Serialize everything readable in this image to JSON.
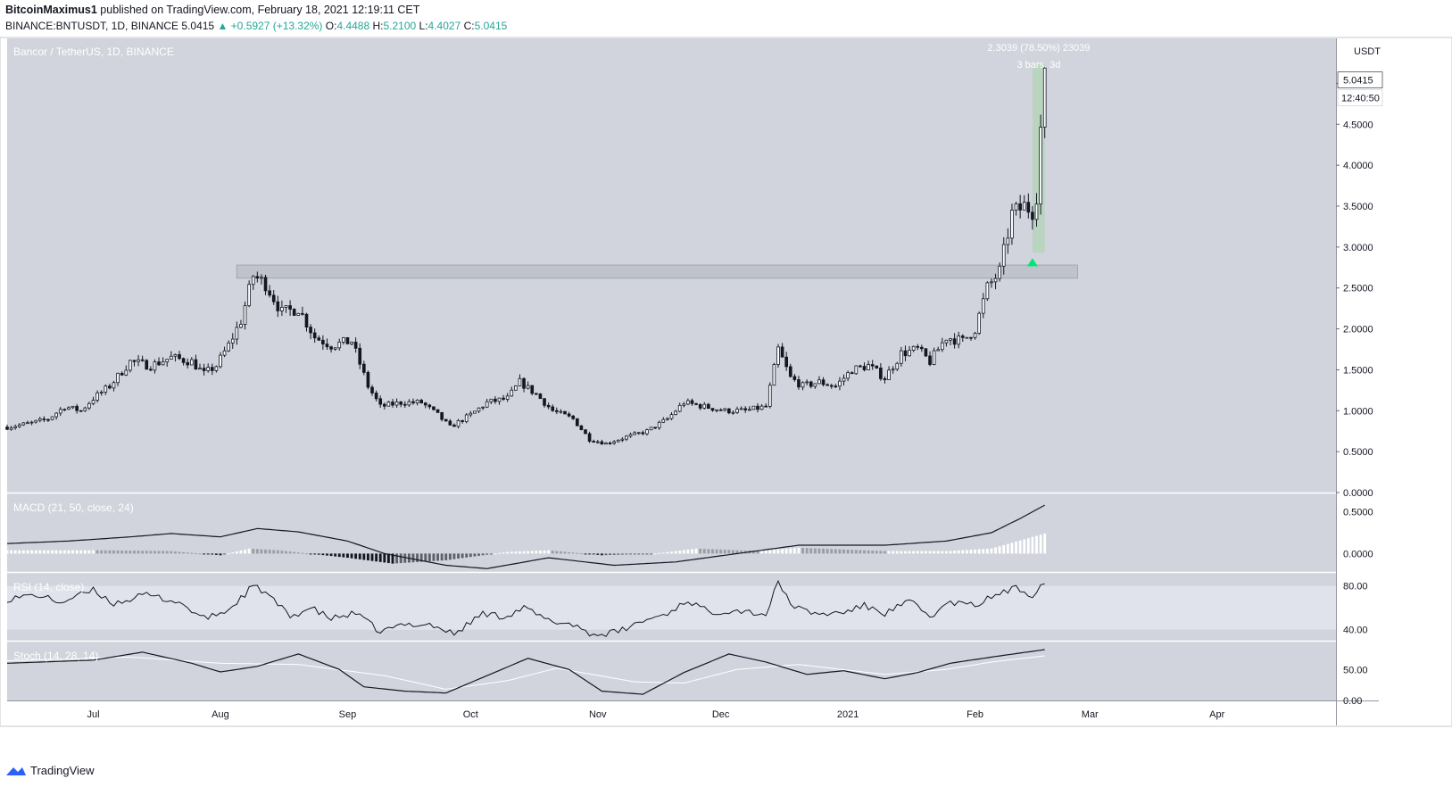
{
  "header": {
    "author": "BitcoinMaximus1",
    "published": "published on TradingView.com, February 18, 2021 12:19:11 CET",
    "symbol": "BINANCE:BNTUSDT, 1D, BINANCE",
    "last": "5.0415",
    "change": "+0.5927 (+13.32%)",
    "o_label": "O:",
    "o": "4.4488",
    "h_label": "H:",
    "h": "5.2100",
    "l_label": "L:",
    "l": "4.4027",
    "c_label": "C:",
    "c": "5.0415"
  },
  "colors": {
    "pane_bg": "#d1d4dc",
    "candle": "#131722",
    "band": "#e0e3eb",
    "zone": "#bfc3cb",
    "measure": "#a5d6a7",
    "arrow": "#00e676"
  },
  "chart_data": [
    {
      "type": "candlestick",
      "title": "Bancor / TetherUS, 1D, BINANCE",
      "unit": "USDT",
      "x_dates": [
        "2020-06-10",
        "2021-04-30"
      ],
      "x_ticks": [
        {
          "date": "2020-07-01",
          "label": "Jul"
        },
        {
          "date": "2020-08-01",
          "label": "Aug"
        },
        {
          "date": "2020-09-01",
          "label": "Sep"
        },
        {
          "date": "2020-10-01",
          "label": "Oct"
        },
        {
          "date": "2020-11-01",
          "label": "Nov"
        },
        {
          "date": "2020-12-01",
          "label": "Dec"
        },
        {
          "date": "2021-01-01",
          "label": "2021"
        },
        {
          "date": "2021-02-01",
          "label": "Feb"
        },
        {
          "date": "2021-03-01",
          "label": "Mar"
        },
        {
          "date": "2021-04-01",
          "label": "Apr"
        }
      ],
      "ylim": [
        0,
        5.55
      ],
      "y_ticks": [
        "5",
        "4.5000",
        "4.0000",
        "3.5000",
        "3.0000",
        "2.5000",
        "2.0000",
        "1.5000",
        "1.0000",
        "0.5000",
        "0.0000"
      ],
      "y_tick_values": [
        5,
        4.5,
        4,
        3.5,
        3,
        2.5,
        2,
        1.5,
        1,
        0.5,
        0
      ],
      "last_price_label": "5.0415",
      "countdown_label": "12:40:50",
      "close_path": [
        [
          "2020-06-10",
          0.8
        ],
        [
          "2020-06-16",
          0.85
        ],
        [
          "2020-06-20",
          0.9
        ],
        [
          "2020-06-24",
          1.05
        ],
        [
          "2020-06-28",
          1.0
        ],
        [
          "2020-07-01",
          1.15
        ],
        [
          "2020-07-05",
          1.3
        ],
        [
          "2020-07-10",
          1.6
        ],
        [
          "2020-07-15",
          1.55
        ],
        [
          "2020-07-20",
          1.65
        ],
        [
          "2020-07-25",
          1.6
        ],
        [
          "2020-07-28",
          1.45
        ],
        [
          "2020-07-31",
          1.55
        ],
        [
          "2020-08-03",
          1.8
        ],
        [
          "2020-08-06",
          2.1
        ],
        [
          "2020-08-09",
          2.65
        ],
        [
          "2020-08-12",
          2.55
        ],
        [
          "2020-08-16",
          2.2
        ],
        [
          "2020-08-20",
          2.25
        ],
        [
          "2020-08-24",
          1.9
        ],
        [
          "2020-08-28",
          1.8
        ],
        [
          "2020-09-02",
          1.85
        ],
        [
          "2020-09-06",
          1.3
        ],
        [
          "2020-09-09",
          1.05
        ],
        [
          "2020-09-14",
          1.1
        ],
        [
          "2020-09-19",
          1.1
        ],
        [
          "2020-09-23",
          0.95
        ],
        [
          "2020-09-26",
          0.8
        ],
        [
          "2020-10-01",
          0.95
        ],
        [
          "2020-10-05",
          1.1
        ],
        [
          "2020-10-10",
          1.15
        ],
        [
          "2020-10-13",
          1.35
        ],
        [
          "2020-10-17",
          1.2
        ],
        [
          "2020-10-21",
          1.0
        ],
        [
          "2020-10-26",
          0.9
        ],
        [
          "2020-10-30",
          0.65
        ],
        [
          "2020-11-03",
          0.6
        ],
        [
          "2020-11-08",
          0.68
        ],
        [
          "2020-11-13",
          0.75
        ],
        [
          "2020-11-18",
          0.9
        ],
        [
          "2020-11-22",
          1.1
        ],
        [
          "2020-11-27",
          1.05
        ],
        [
          "2020-12-02",
          1.0
        ],
        [
          "2020-12-07",
          1.0
        ],
        [
          "2020-12-12",
          1.05
        ],
        [
          "2020-12-15",
          1.75
        ],
        [
          "2020-12-18",
          1.4
        ],
        [
          "2020-12-21",
          1.3
        ],
        [
          "2020-12-25",
          1.35
        ],
        [
          "2020-12-29",
          1.3
        ],
        [
          "2021-01-02",
          1.5
        ],
        [
          "2021-01-06",
          1.55
        ],
        [
          "2021-01-10",
          1.4
        ],
        [
          "2021-01-14",
          1.7
        ],
        [
          "2021-01-18",
          1.75
        ],
        [
          "2021-01-21",
          1.6
        ],
        [
          "2021-01-25",
          1.9
        ],
        [
          "2021-01-29",
          1.85
        ],
        [
          "2021-02-01",
          2.0
        ],
        [
          "2021-02-04",
          2.5
        ],
        [
          "2021-02-07",
          2.7
        ],
        [
          "2021-02-10",
          3.4
        ],
        [
          "2021-02-13",
          3.5
        ],
        [
          "2021-02-15",
          3.45
        ],
        [
          "2021-02-16",
          3.65
        ],
        [
          "2021-02-17",
          4.45
        ],
        [
          "2021-02-18",
          5.04
        ]
      ],
      "zones": [
        {
          "from": "2020-08-05",
          "to": "2021-02-26",
          "low": 2.62,
          "high": 2.78
        }
      ],
      "measure": {
        "from": "2021-02-15",
        "to": "2021-02-18",
        "low": 2.93,
        "high": 5.23,
        "label1": "2.3039 (78.50%) 23039",
        "label2": "3 bars, 3d"
      },
      "arrow": {
        "date": "2021-02-15",
        "value": 2.82
      }
    },
    {
      "type": "macd",
      "title": "MACD (21, 50, close, 24)",
      "ylim": [
        -0.22,
        0.72
      ],
      "y_ticks": [
        "0.5000",
        "0.0000"
      ],
      "y_tick_values": [
        0.5,
        0
      ],
      "macd_path": [
        [
          "2020-06-10",
          0.12
        ],
        [
          "2020-06-25",
          0.15
        ],
        [
          "2020-07-10",
          0.2
        ],
        [
          "2020-07-20",
          0.24
        ],
        [
          "2020-08-01",
          0.2
        ],
        [
          "2020-08-10",
          0.3
        ],
        [
          "2020-08-20",
          0.26
        ],
        [
          "2020-09-01",
          0.15
        ],
        [
          "2020-09-10",
          0.0
        ],
        [
          "2020-09-25",
          -0.14
        ],
        [
          "2020-10-05",
          -0.18
        ],
        [
          "2020-10-20",
          -0.05
        ],
        [
          "2020-11-05",
          -0.14
        ],
        [
          "2020-11-20",
          -0.1
        ],
        [
          "2020-12-05",
          0.0
        ],
        [
          "2020-12-20",
          0.1
        ],
        [
          "2021-01-10",
          0.1
        ],
        [
          "2021-01-25",
          0.15
        ],
        [
          "2021-02-05",
          0.25
        ],
        [
          "2021-02-12",
          0.42
        ],
        [
          "2021-02-18",
          0.58
        ]
      ],
      "hist_path": [
        [
          "2020-06-10",
          0.04
        ],
        [
          "2020-07-01",
          0.04
        ],
        [
          "2020-07-20",
          0.03
        ],
        [
          "2020-08-01",
          -0.02
        ],
        [
          "2020-08-08",
          0.06
        ],
        [
          "2020-08-15",
          0.04
        ],
        [
          "2020-09-01",
          -0.05
        ],
        [
          "2020-09-12",
          -0.12
        ],
        [
          "2020-09-25",
          -0.08
        ],
        [
          "2020-10-10",
          0.02
        ],
        [
          "2020-10-20",
          0.04
        ],
        [
          "2020-11-02",
          -0.02
        ],
        [
          "2020-11-15",
          0.0
        ],
        [
          "2020-11-25",
          0.06
        ],
        [
          "2020-12-10",
          0.03
        ],
        [
          "2020-12-20",
          0.07
        ],
        [
          "2021-01-10",
          0.03
        ],
        [
          "2021-01-25",
          0.03
        ],
        [
          "2021-02-05",
          0.06
        ],
        [
          "2021-02-18",
          0.24
        ]
      ]
    },
    {
      "type": "rsi",
      "title": "RSI (14, close)",
      "ylim": [
        30,
        92
      ],
      "band": [
        40,
        80
      ],
      "y_ticks": [
        "80.00",
        "40.00"
      ],
      "y_tick_values": [
        80,
        40
      ],
      "path": [
        [
          "2020-06-10",
          68
        ],
        [
          "2020-06-17",
          72
        ],
        [
          "2020-06-23",
          65
        ],
        [
          "2020-07-01",
          76
        ],
        [
          "2020-07-06",
          64
        ],
        [
          "2020-07-14",
          72
        ],
        [
          "2020-07-22",
          65
        ],
        [
          "2020-07-28",
          50
        ],
        [
          "2020-08-03",
          58
        ],
        [
          "2020-08-09",
          80
        ],
        [
          "2020-08-12",
          74
        ],
        [
          "2020-08-18",
          52
        ],
        [
          "2020-08-23",
          60
        ],
        [
          "2020-08-28",
          50
        ],
        [
          "2020-09-03",
          55
        ],
        [
          "2020-09-09",
          38
        ],
        [
          "2020-09-15",
          45
        ],
        [
          "2020-09-21",
          45
        ],
        [
          "2020-09-27",
          36
        ],
        [
          "2020-10-04",
          55
        ],
        [
          "2020-10-09",
          52
        ],
        [
          "2020-10-14",
          60
        ],
        [
          "2020-10-20",
          48
        ],
        [
          "2020-10-26",
          45
        ],
        [
          "2020-10-31",
          35
        ],
        [
          "2020-11-06",
          38
        ],
        [
          "2020-11-12",
          48
        ],
        [
          "2020-11-18",
          55
        ],
        [
          "2020-11-23",
          67
        ],
        [
          "2020-11-28",
          56
        ],
        [
          "2020-12-05",
          58
        ],
        [
          "2020-12-12",
          54
        ],
        [
          "2020-12-15",
          83
        ],
        [
          "2020-12-19",
          60
        ],
        [
          "2020-12-25",
          54
        ],
        [
          "2020-12-31",
          56
        ],
        [
          "2021-01-05",
          62
        ],
        [
          "2021-01-10",
          55
        ],
        [
          "2021-01-16",
          66
        ],
        [
          "2021-01-21",
          52
        ],
        [
          "2021-01-26",
          65
        ],
        [
          "2021-02-01",
          62
        ],
        [
          "2021-02-06",
          72
        ],
        [
          "2021-02-11",
          78
        ],
        [
          "2021-02-15",
          72
        ],
        [
          "2021-02-18",
          85
        ]
      ]
    },
    {
      "type": "stoch",
      "title": "Stoch (14, 28, 14)",
      "ylim": [
        0,
        95
      ],
      "y_ticks": [
        "50.00",
        "0.00"
      ],
      "y_tick_values": [
        50,
        0
      ],
      "k_path": [
        [
          "2020-06-10",
          60
        ],
        [
          "2020-07-01",
          65
        ],
        [
          "2020-07-13",
          78
        ],
        [
          "2020-07-25",
          60
        ],
        [
          "2020-08-01",
          46
        ],
        [
          "2020-08-10",
          55
        ],
        [
          "2020-08-20",
          75
        ],
        [
          "2020-08-30",
          50
        ],
        [
          "2020-09-05",
          22
        ],
        [
          "2020-09-15",
          15
        ],
        [
          "2020-09-25",
          12
        ],
        [
          "2020-10-05",
          40
        ],
        [
          "2020-10-15",
          68
        ],
        [
          "2020-10-25",
          50
        ],
        [
          "2020-11-02",
          15
        ],
        [
          "2020-11-12",
          10
        ],
        [
          "2020-11-22",
          45
        ],
        [
          "2020-12-03",
          75
        ],
        [
          "2020-12-12",
          62
        ],
        [
          "2020-12-22",
          42
        ],
        [
          "2020-12-31",
          48
        ],
        [
          "2021-01-10",
          35
        ],
        [
          "2021-01-18",
          45
        ],
        [
          "2021-01-26",
          60
        ],
        [
          "2021-02-05",
          70
        ],
        [
          "2021-02-18",
          82
        ]
      ],
      "d_path": [
        [
          "2020-06-10",
          64
        ],
        [
          "2020-07-10",
          70
        ],
        [
          "2020-08-01",
          60
        ],
        [
          "2020-08-20",
          58
        ],
        [
          "2020-09-10",
          40
        ],
        [
          "2020-09-25",
          18
        ],
        [
          "2020-10-10",
          32
        ],
        [
          "2020-10-22",
          52
        ],
        [
          "2020-11-10",
          30
        ],
        [
          "2020-11-22",
          28
        ],
        [
          "2020-12-05",
          50
        ],
        [
          "2020-12-20",
          58
        ],
        [
          "2021-01-10",
          42
        ],
        [
          "2021-01-25",
          50
        ],
        [
          "2021-02-05",
          62
        ],
        [
          "2021-02-18",
          72
        ]
      ]
    }
  ],
  "footer": {
    "brand": "TradingView"
  }
}
